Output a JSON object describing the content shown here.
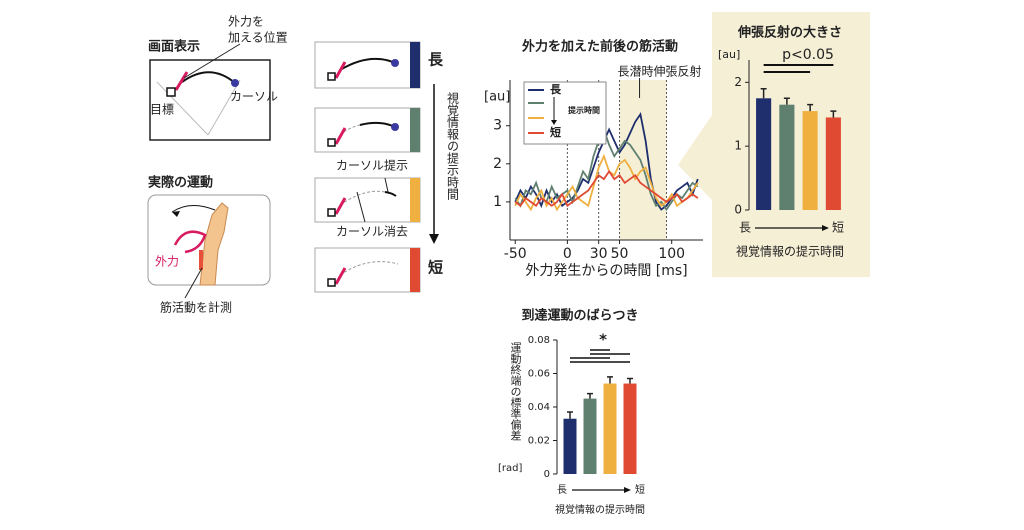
{
  "diagram": {
    "screen_title": "画面表示",
    "force_position": [
      "外力を",
      "加える位置"
    ],
    "target": "目標",
    "cursor": "カーソル",
    "movement_title": "実際の運動",
    "force": "外力",
    "measure": "筋活動を計測",
    "long": "長",
    "short": "短",
    "vertical_label": "視覚情報の提示時間",
    "cursor_show": "カーソル提示",
    "cursor_hide": "カーソル消去"
  },
  "chart_data": [
    {
      "type": "line",
      "title": "外力を加えた前後の筋活動",
      "xlabel": "外力発生からの時間 [ms]",
      "ylabel": "[au]",
      "annotation": "長潜時伸張反射",
      "legend": {
        "top": "長",
        "note": "提示時間",
        "bottom": "短"
      },
      "x": [
        -50,
        -45,
        -40,
        -35,
        -30,
        -25,
        -20,
        -15,
        -10,
        -5,
        0,
        5,
        10,
        15,
        20,
        25,
        30,
        35,
        40,
        45,
        50,
        55,
        60,
        65,
        70,
        75,
        80,
        85,
        90,
        95,
        100,
        105,
        110,
        115,
        120,
        125
      ],
      "series": [
        {
          "color": "#1f2f6e",
          "values": [
            1.0,
            1.3,
            1.1,
            1.4,
            1.2,
            0.9,
            1.3,
            1.0,
            1.2,
            0.9,
            1.0,
            1.1,
            1.3,
            1.6,
            1.5,
            1.9,
            2.3,
            2.6,
            2.9,
            2.6,
            2.3,
            2.5,
            2.8,
            3.1,
            3.3,
            2.6,
            1.6,
            1.0,
            0.8,
            0.9,
            1.1,
            1.3,
            1.4,
            1.5,
            1.2,
            1.6
          ]
        },
        {
          "color": "#5f7f6f",
          "values": [
            1.1,
            0.9,
            1.3,
            1.2,
            1.5,
            1.1,
            1.0,
            1.4,
            1.1,
            1.2,
            1.3,
            1.0,
            1.4,
            1.8,
            1.6,
            2.2,
            2.6,
            2.9,
            2.5,
            2.2,
            2.4,
            2.6,
            2.5,
            2.3,
            2.1,
            1.7,
            1.2,
            0.9,
            1.0,
            0.8,
            1.0,
            1.2,
            1.1,
            1.3,
            1.5,
            1.4
          ]
        },
        {
          "color": "#f0b040",
          "values": [
            0.9,
            1.2,
            1.0,
            0.8,
            1.1,
            1.3,
            0.9,
            1.1,
            0.8,
            1.0,
            1.2,
            1.4,
            1.1,
            1.0,
            0.9,
            1.4,
            1.9,
            2.2,
            1.8,
            1.7,
            2.0,
            2.1,
            1.9,
            1.6,
            1.8,
            1.9,
            1.5,
            1.1,
            0.9,
            1.0,
            1.2,
            0.9,
            1.0,
            1.1,
            1.3,
            1.5
          ]
        },
        {
          "color": "#e04a33",
          "values": [
            1.0,
            0.9,
            1.1,
            1.0,
            0.9,
            1.1,
            1.0,
            0.9,
            1.0,
            1.2,
            0.9,
            1.0,
            1.1,
            1.2,
            1.3,
            1.5,
            1.7,
            1.6,
            1.8,
            1.6,
            1.7,
            1.5,
            1.6,
            1.7,
            1.5,
            1.4,
            1.3,
            1.2,
            1.1,
            1.0,
            1.1,
            1.2,
            1.0,
            1.1,
            1.2,
            1.1
          ]
        }
      ],
      "xlim": [
        -55,
        130
      ],
      "ylim": [
        0,
        4.2
      ],
      "xticks": [
        -50,
        0,
        30,
        50,
        100
      ],
      "yticks": [
        1,
        2,
        3
      ],
      "vlines": [
        0,
        30,
        50,
        95
      ],
      "shade": [
        50,
        95
      ]
    },
    {
      "type": "bar",
      "title": "伸張反射の大きさ",
      "ylabel": "[au]",
      "annotation": "p<0.05",
      "axis_ends": [
        "長",
        "短"
      ],
      "xlabel": "視覚情報の提示時間",
      "values": [
        1.75,
        1.65,
        1.55,
        1.45
      ],
      "errors": [
        0.15,
        0.1,
        0.1,
        0.1
      ],
      "colors": [
        "#1f2f6e",
        "#5f7f6f",
        "#f0b040",
        "#e04a33"
      ],
      "ylim": [
        0,
        2.35
      ],
      "yticks": [
        0,
        1,
        2
      ]
    },
    {
      "type": "bar",
      "title": "到達運動のばらつき",
      "ylabel": "運動終端の標準偏差",
      "unit": "[rad]",
      "annotation": "*",
      "axis_ends": [
        "長",
        "短"
      ],
      "xlabel": "視覚情報の提示時間",
      "values": [
        0.033,
        0.045,
        0.054,
        0.054
      ],
      "errors": [
        0.004,
        0.003,
        0.004,
        0.003
      ],
      "colors": [
        "#1f2f6e",
        "#5f7f6f",
        "#f0b040",
        "#e04a33"
      ],
      "ylim": [
        0,
        0.08
      ],
      "yticks": [
        0,
        0.02,
        0.04,
        0.06,
        0.08
      ]
    }
  ]
}
